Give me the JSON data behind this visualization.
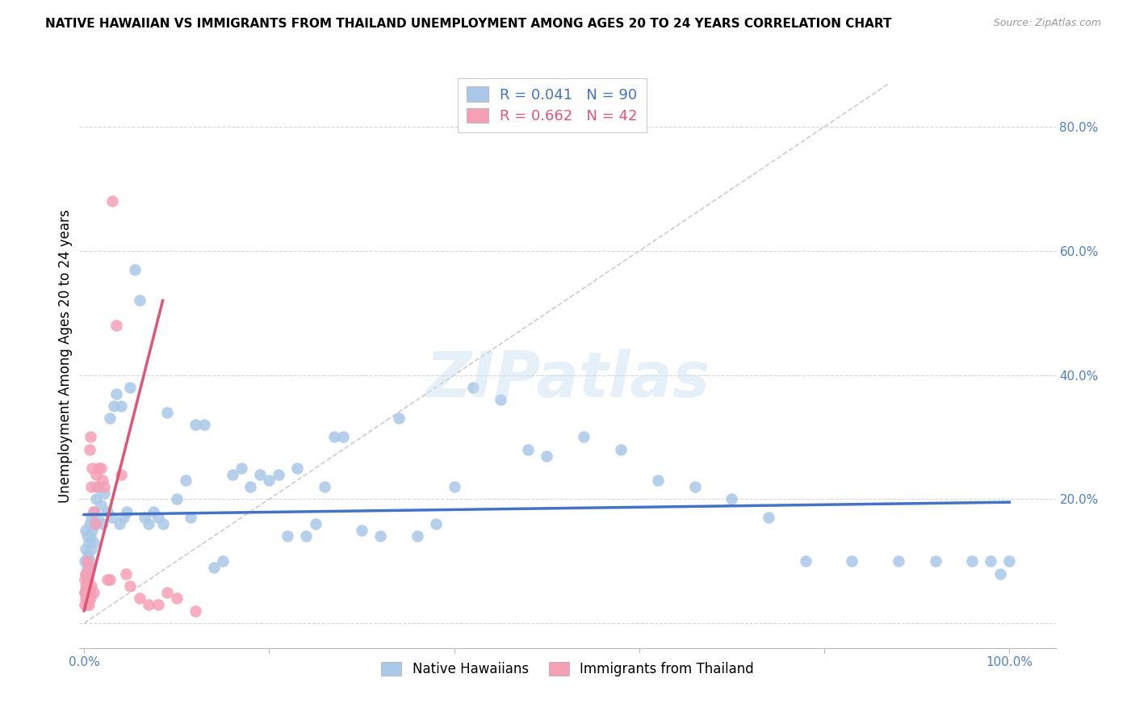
{
  "title": "NATIVE HAWAIIAN VS IMMIGRANTS FROM THAILAND UNEMPLOYMENT AMONG AGES 20 TO 24 YEARS CORRELATION CHART",
  "source": "Source: ZipAtlas.com",
  "ylabel": "Unemployment Among Ages 20 to 24 years",
  "xlim": [
    -0.005,
    1.05
  ],
  "ylim": [
    -0.04,
    0.9
  ],
  "xticks": [
    0.0,
    0.2,
    0.4,
    0.6,
    0.8,
    1.0
  ],
  "yticks": [
    0.0,
    0.2,
    0.4,
    0.6,
    0.8
  ],
  "xtick_labels": [
    "0.0%",
    "",
    "",
    "",
    "",
    "100.0%"
  ],
  "ytick_labels": [
    "",
    "20.0%",
    "40.0%",
    "60.0%",
    "80.0%"
  ],
  "blue_R": "0.041",
  "blue_N": "90",
  "pink_R": "0.662",
  "pink_N": "42",
  "blue_color": "#aac8e8",
  "pink_color": "#f5a0b5",
  "blue_line_color": "#4472c4",
  "pink_line_color": "#e05575",
  "diag_color": "#c8c8c8",
  "grid_color": "#d8d8d8",
  "legend_label_blue": "Native Hawaiians",
  "legend_label_pink": "Immigrants from Thailand",
  "watermark": "ZIPatlas",
  "title_fontsize": 11,
  "tick_fontsize": 11,
  "axis_label_fontsize": 12,
  "blue_scatter_x": [
    0.001,
    0.001,
    0.002,
    0.002,
    0.002,
    0.003,
    0.003,
    0.003,
    0.004,
    0.004,
    0.005,
    0.005,
    0.006,
    0.006,
    0.007,
    0.007,
    0.008,
    0.008,
    0.009,
    0.01,
    0.01,
    0.012,
    0.013,
    0.015,
    0.016,
    0.018,
    0.02,
    0.022,
    0.025,
    0.028,
    0.03,
    0.032,
    0.035,
    0.038,
    0.04,
    0.043,
    0.046,
    0.05,
    0.055,
    0.06,
    0.065,
    0.07,
    0.075,
    0.08,
    0.085,
    0.09,
    0.1,
    0.11,
    0.115,
    0.12,
    0.13,
    0.14,
    0.15,
    0.16,
    0.17,
    0.18,
    0.19,
    0.2,
    0.21,
    0.22,
    0.23,
    0.24,
    0.25,
    0.26,
    0.27,
    0.28,
    0.3,
    0.32,
    0.34,
    0.36,
    0.38,
    0.4,
    0.42,
    0.45,
    0.48,
    0.5,
    0.54,
    0.58,
    0.62,
    0.66,
    0.7,
    0.74,
    0.78,
    0.83,
    0.88,
    0.92,
    0.96,
    0.98,
    0.99,
    1.0
  ],
  "blue_scatter_y": [
    0.05,
    0.1,
    0.08,
    0.12,
    0.15,
    0.06,
    0.09,
    0.14,
    0.07,
    0.11,
    0.08,
    0.13,
    0.1,
    0.16,
    0.09,
    0.14,
    0.12,
    0.17,
    0.15,
    0.13,
    0.18,
    0.16,
    0.2,
    0.17,
    0.22,
    0.19,
    0.16,
    0.21,
    0.18,
    0.33,
    0.17,
    0.35,
    0.37,
    0.16,
    0.35,
    0.17,
    0.18,
    0.38,
    0.57,
    0.52,
    0.17,
    0.16,
    0.18,
    0.17,
    0.16,
    0.34,
    0.2,
    0.23,
    0.17,
    0.32,
    0.32,
    0.09,
    0.1,
    0.24,
    0.25,
    0.22,
    0.24,
    0.23,
    0.24,
    0.14,
    0.25,
    0.14,
    0.16,
    0.22,
    0.3,
    0.3,
    0.15,
    0.14,
    0.33,
    0.14,
    0.16,
    0.22,
    0.38,
    0.36,
    0.28,
    0.27,
    0.3,
    0.28,
    0.23,
    0.22,
    0.2,
    0.17,
    0.1,
    0.1,
    0.1,
    0.1,
    0.1,
    0.1,
    0.08,
    0.1
  ],
  "pink_scatter_x": [
    0.001,
    0.001,
    0.001,
    0.002,
    0.002,
    0.002,
    0.003,
    0.003,
    0.003,
    0.004,
    0.004,
    0.005,
    0.005,
    0.006,
    0.006,
    0.007,
    0.007,
    0.008,
    0.008,
    0.009,
    0.01,
    0.01,
    0.012,
    0.013,
    0.014,
    0.016,
    0.018,
    0.02,
    0.022,
    0.025,
    0.028,
    0.03,
    0.035,
    0.04,
    0.045,
    0.05,
    0.06,
    0.07,
    0.08,
    0.09,
    0.1,
    0.12
  ],
  "pink_scatter_y": [
    0.03,
    0.05,
    0.07,
    0.04,
    0.06,
    0.08,
    0.03,
    0.05,
    0.1,
    0.04,
    0.07,
    0.03,
    0.09,
    0.05,
    0.28,
    0.04,
    0.3,
    0.06,
    0.22,
    0.25,
    0.05,
    0.18,
    0.16,
    0.24,
    0.22,
    0.25,
    0.25,
    0.23,
    0.22,
    0.07,
    0.07,
    0.68,
    0.48,
    0.24,
    0.08,
    0.06,
    0.04,
    0.03,
    0.03,
    0.05,
    0.04,
    0.02
  ],
  "blue_line_x": [
    0.0,
    1.0
  ],
  "blue_line_y": [
    0.175,
    0.195
  ],
  "pink_line_x_start": 0.0,
  "pink_line_x_end": 0.085,
  "pink_line_y_start": 0.02,
  "pink_line_y_end": 0.52,
  "diag_line_x": [
    0.0,
    0.87
  ],
  "diag_line_y": [
    0.0,
    0.87
  ]
}
